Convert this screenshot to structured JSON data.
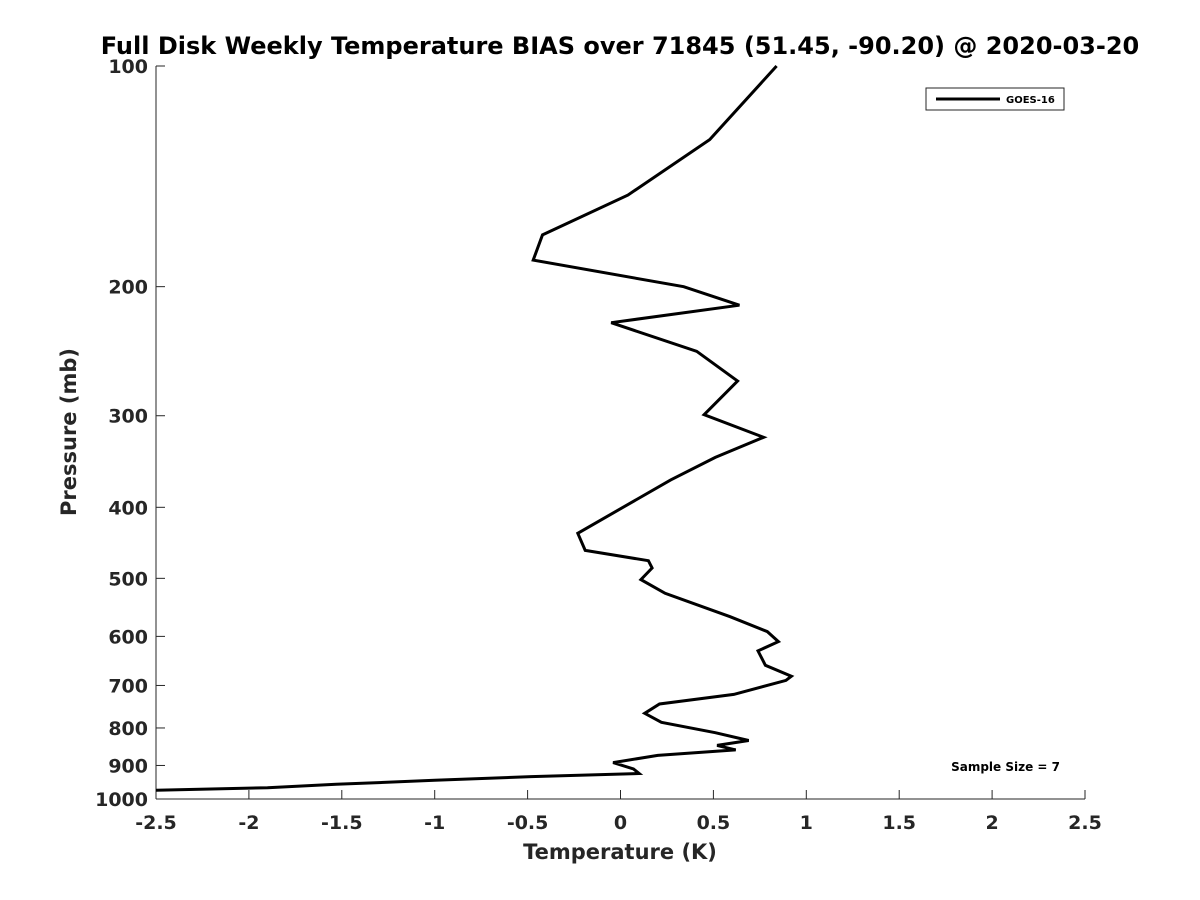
{
  "chart_data": {
    "type": "line",
    "title": "Full Disk Weekly Temperature BIAS over 71845 (51.45, -90.20) @ 2020-03-20",
    "xlabel": "Temperature (K)",
    "ylabel": "Pressure (mb)",
    "xlim": [
      -2.5,
      2.5
    ],
    "ylim": [
      100,
      1000
    ],
    "y_scale": "log",
    "y_reversed": true,
    "grid": false,
    "x_ticks": [
      -2.5,
      -2,
      -1.5,
      -1,
      -0.5,
      0,
      0.5,
      1,
      1.5,
      2,
      2.5
    ],
    "x_tick_labels": [
      "-2.5",
      "-2",
      "-1.5",
      "-1",
      "-0.5",
      "0",
      "0.5",
      "1",
      "1.5",
      "2",
      "2.5"
    ],
    "y_ticks": [
      100,
      200,
      300,
      400,
      500,
      600,
      700,
      800,
      900,
      1000
    ],
    "y_tick_labels": [
      "100",
      "200",
      "300",
      "400",
      "500",
      "600",
      "700",
      "800",
      "900",
      "1000"
    ],
    "legend_position": "top-right",
    "series": [
      {
        "name": "GOES-16",
        "color": "#000000",
        "points": [
          [
            0.84,
            100
          ],
          [
            0.48,
            126
          ],
          [
            0.04,
            150
          ],
          [
            -0.42,
            170
          ],
          [
            -0.47,
            184
          ],
          [
            0.34,
            200
          ],
          [
            0.64,
            212
          ],
          [
            -0.05,
            224
          ],
          [
            0.41,
            245
          ],
          [
            0.63,
            269
          ],
          [
            0.45,
            299
          ],
          [
            0.77,
            321
          ],
          [
            0.51,
            342
          ],
          [
            0.27,
            367
          ],
          [
            -0.23,
            434
          ],
          [
            -0.19,
            458
          ],
          [
            0.15,
            473
          ],
          [
            0.17,
            484
          ],
          [
            0.11,
            502
          ],
          [
            0.24,
            524
          ],
          [
            0.59,
            564
          ],
          [
            0.79,
            591
          ],
          [
            0.85,
            610
          ],
          [
            0.74,
            628
          ],
          [
            0.78,
            657
          ],
          [
            0.92,
            680
          ],
          [
            0.89,
            689
          ],
          [
            0.61,
            720
          ],
          [
            0.21,
            742
          ],
          [
            0.13,
            764
          ],
          [
            0.22,
            786
          ],
          [
            0.51,
            812
          ],
          [
            0.69,
            832
          ],
          [
            0.52,
            845
          ],
          [
            0.62,
            857
          ],
          [
            0.2,
            872
          ],
          [
            -0.04,
            892
          ],
          [
            0.07,
            910
          ],
          [
            0.1,
            923
          ],
          [
            -0.48,
            932
          ],
          [
            -1.0,
            943
          ],
          [
            -1.53,
            955
          ],
          [
            -1.9,
            965
          ],
          [
            -2.5,
            973
          ]
        ]
      }
    ],
    "annotations": [
      {
        "text": "Sample Size = 7",
        "position": "bottom-right"
      }
    ]
  }
}
